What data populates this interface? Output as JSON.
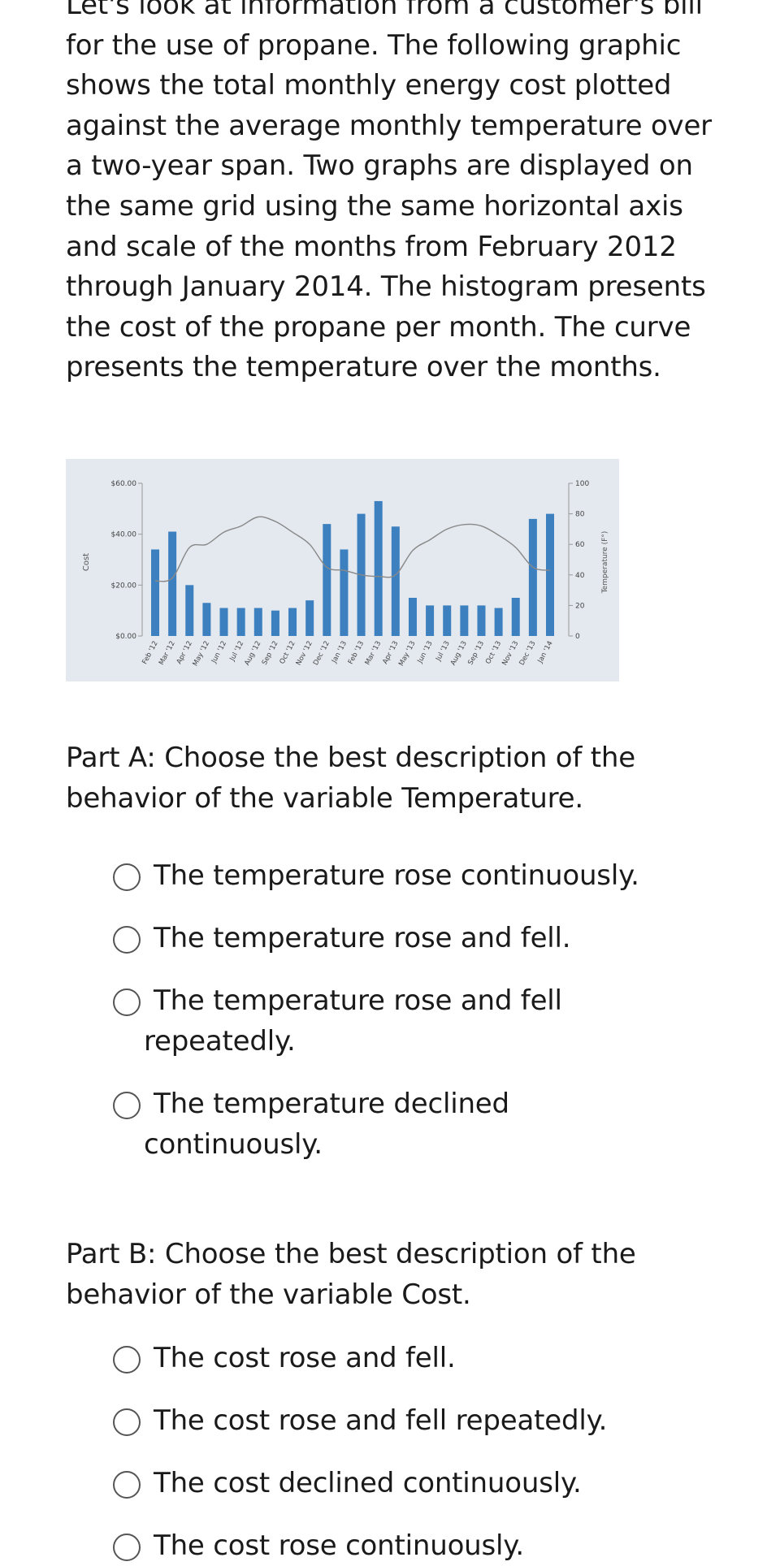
{
  "intro_text": "Let's look at information from a customer's bill for the use of propane. The following graphic shows the total monthly energy cost plotted against the average monthly temperature over a two-year span. Two graphs are displayed on the same grid using the same horizontal axis and scale of the months from February 2012 through January 2014. The histogram presents the cost of the propane per month. The curve presents the temperature over the months.",
  "chart_data": {
    "type": "bar",
    "categories": [
      "Feb '12",
      "Mar '12",
      "Apr '12",
      "May '12",
      "Jun '12",
      "Jul '12",
      "Aug '12",
      "Sep '12",
      "Oct '12",
      "Nov '12",
      "Dec '12",
      "Jan '13",
      "Feb '13",
      "Mar '13",
      "Apr '13",
      "May '13",
      "Jun '13",
      "Jul '13",
      "Aug '13",
      "Sep '13",
      "Oct '13",
      "Nov '13",
      "Dec '13",
      "Jan '14"
    ],
    "series": [
      {
        "type": "bar",
        "axis": "left",
        "values": [
          34,
          41,
          20,
          13,
          11,
          11,
          11,
          10,
          11,
          14,
          44,
          34,
          48,
          53,
          43,
          15,
          12,
          12,
          12,
          12,
          11,
          15,
          46,
          48
        ]
      },
      {
        "type": "line",
        "axis": "right",
        "values": [
          36,
          38,
          58,
          60,
          68,
          72,
          78,
          75,
          68,
          60,
          45,
          43,
          40,
          39,
          40,
          56,
          63,
          70,
          73,
          72,
          66,
          58,
          45,
          43
        ]
      }
    ],
    "ylabel": "Cost",
    "ylabel_right": "Temperature (F°)",
    "y_ticks": [
      "$60.00",
      "$40.00",
      "$20.00",
      "$0.00"
    ],
    "y_tick_values": [
      60,
      40,
      20,
      0
    ],
    "ylim": [
      0,
      60
    ],
    "y2_ticks": [
      "100",
      "80",
      "60",
      "40",
      "20",
      "0"
    ],
    "y2_tick_values": [
      100,
      80,
      60,
      40,
      20,
      0
    ],
    "y2lim": [
      0,
      100
    ],
    "bar_color": "#3d80bf",
    "line_color": "#888888",
    "grid": false
  },
  "part_a": {
    "title": "Part A: Choose the best description of the behavior of the variable Temperature.",
    "options": [
      "The temperature rose continuously.",
      "The temperature rose and fell.",
      "The temperature rose and fell repeatedly.",
      "The temperature declined continuously."
    ]
  },
  "part_b": {
    "title": "Part B: Choose the best description of the behavior of the variable Cost.",
    "options": [
      "The cost rose and fell.",
      "The cost rose and fell repeatedly.",
      "The cost declined continuously.",
      "The cost rose continuously."
    ]
  }
}
